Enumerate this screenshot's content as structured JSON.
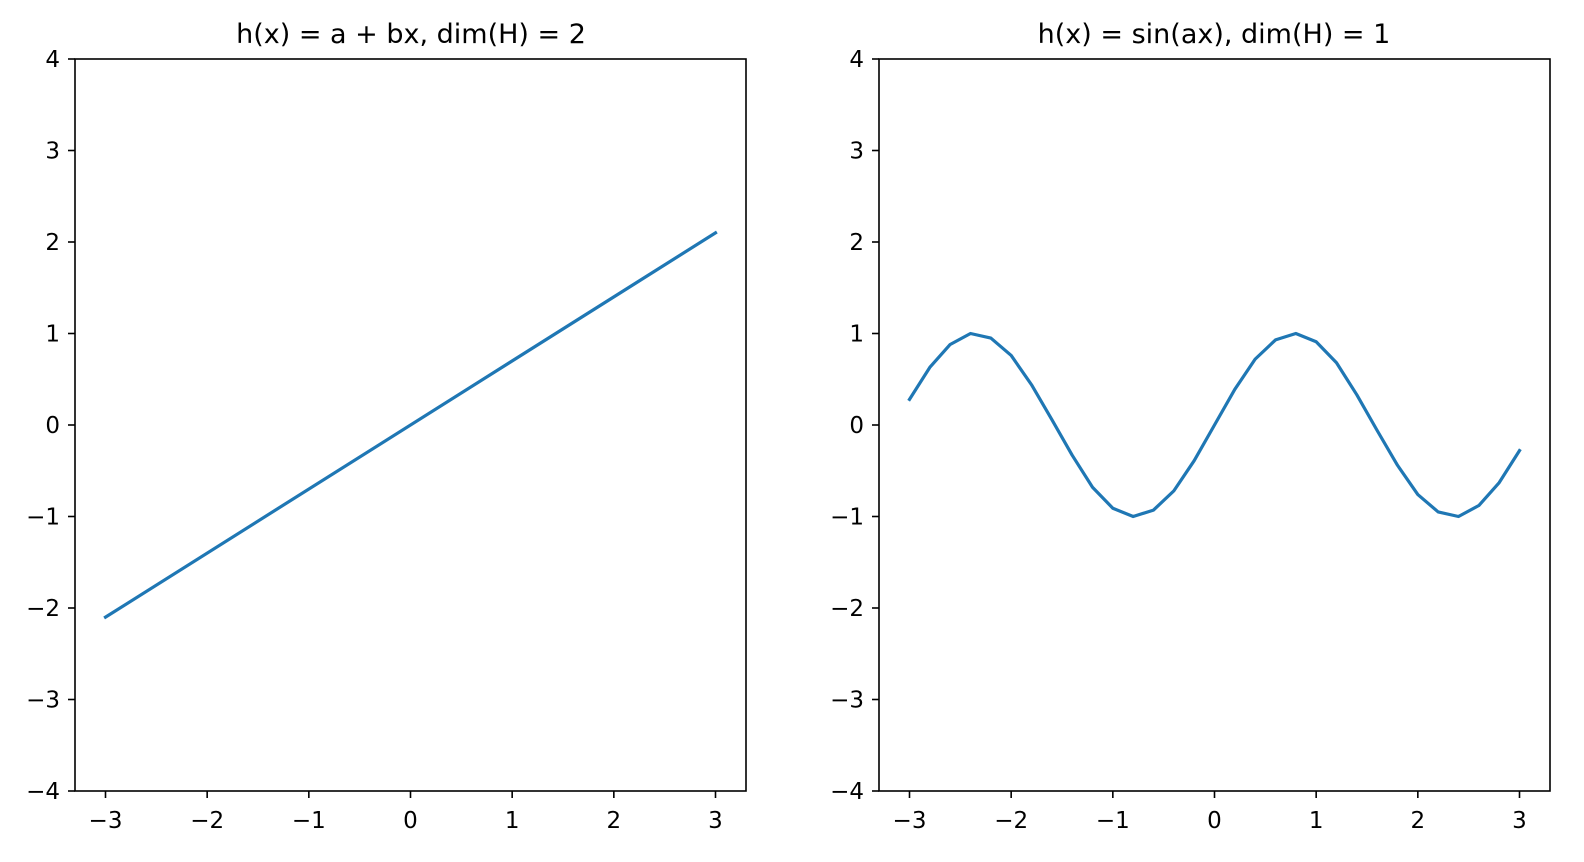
{
  "chart_data": [
    {
      "type": "line",
      "title": "h(x) = a + bx, dim(H) = 2",
      "xlabel": "",
      "ylabel": "",
      "xlim": [
        -3.3,
        3.3
      ],
      "ylim": [
        -4,
        4
      ],
      "xticks": [
        -3,
        -2,
        -1,
        0,
        1,
        2,
        3
      ],
      "xtick_labels": [
        "−3",
        "−2",
        "−1",
        "0",
        "1",
        "2",
        "3"
      ],
      "yticks": [
        -4,
        -3,
        -2,
        -1,
        0,
        1,
        2,
        3,
        4
      ],
      "ytick_labels": [
        "−4",
        "−3",
        "−2",
        "−1",
        "0",
        "1",
        "2",
        "3",
        "4"
      ],
      "grid": false,
      "color": "#1f77b4",
      "series": [
        {
          "x": [
            -3.0,
            3.0
          ],
          "y": [
            -2.1,
            2.1
          ]
        }
      ]
    },
    {
      "type": "line",
      "title": "h(x) = sin(ax), dim(H) = 1",
      "xlabel": "",
      "ylabel": "",
      "xlim": [
        -3.3,
        3.3
      ],
      "ylim": [
        -4,
        4
      ],
      "xticks": [
        -3,
        -2,
        -1,
        0,
        1,
        2,
        3
      ],
      "xtick_labels": [
        "−3",
        "−2",
        "−1",
        "0",
        "1",
        "2",
        "3"
      ],
      "yticks": [
        -4,
        -3,
        -2,
        -1,
        0,
        1,
        2,
        3,
        4
      ],
      "ytick_labels": [
        "−4",
        "−3",
        "−2",
        "−1",
        "0",
        "1",
        "2",
        "3",
        "4"
      ],
      "grid": false,
      "color": "#1f77b4",
      "series": [
        {
          "x": [
            -3.0,
            -2.8,
            -2.6,
            -2.4,
            -2.2,
            -2.0,
            -1.8,
            -1.6,
            -1.4,
            -1.2,
            -1.0,
            -0.8,
            -0.6,
            -0.4,
            -0.2,
            0.0,
            0.2,
            0.4,
            0.6,
            0.8,
            1.0,
            1.2,
            1.4,
            1.6,
            1.8,
            2.0,
            2.2,
            2.4,
            2.6,
            2.8,
            3.0
          ],
          "y": [
            0.28,
            0.63,
            0.88,
            1.0,
            0.95,
            0.76,
            0.44,
            0.06,
            -0.33,
            -0.68,
            -0.91,
            -1.0,
            -0.93,
            -0.72,
            -0.39,
            0.0,
            0.39,
            0.72,
            0.93,
            1.0,
            0.91,
            0.68,
            0.33,
            -0.06,
            -0.44,
            -0.76,
            -0.95,
            -1.0,
            -0.88,
            -0.63,
            -0.28
          ]
        }
      ]
    }
  ]
}
